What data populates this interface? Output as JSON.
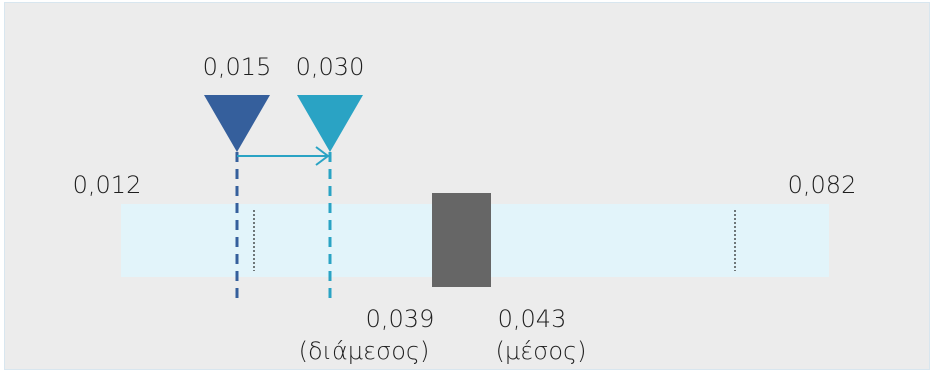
{
  "chart_data": {
    "type": "range-diagram",
    "range": {
      "min": 0.012,
      "max": 0.082,
      "min_label": "0,012",
      "max_label": "0,082",
      "fill_color": "#e2f4fa",
      "inner_ticks": [
        0.013,
        0.069
      ]
    },
    "box": {
      "low": 0.039,
      "high": 0.043,
      "low_label": "0,039",
      "high_label": "0,043",
      "low_caption": "(διάμεσος)",
      "high_caption": "(μέσος)",
      "color": "#666666"
    },
    "markers": [
      {
        "value": 0.015,
        "label": "0,015",
        "color": "#355f9c"
      },
      {
        "value": 0.03,
        "label": "0,030",
        "color": "#2aa3c4"
      }
    ],
    "arrow": {
      "from": 0.015,
      "to": 0.03,
      "color": "#2aa3c4"
    }
  }
}
